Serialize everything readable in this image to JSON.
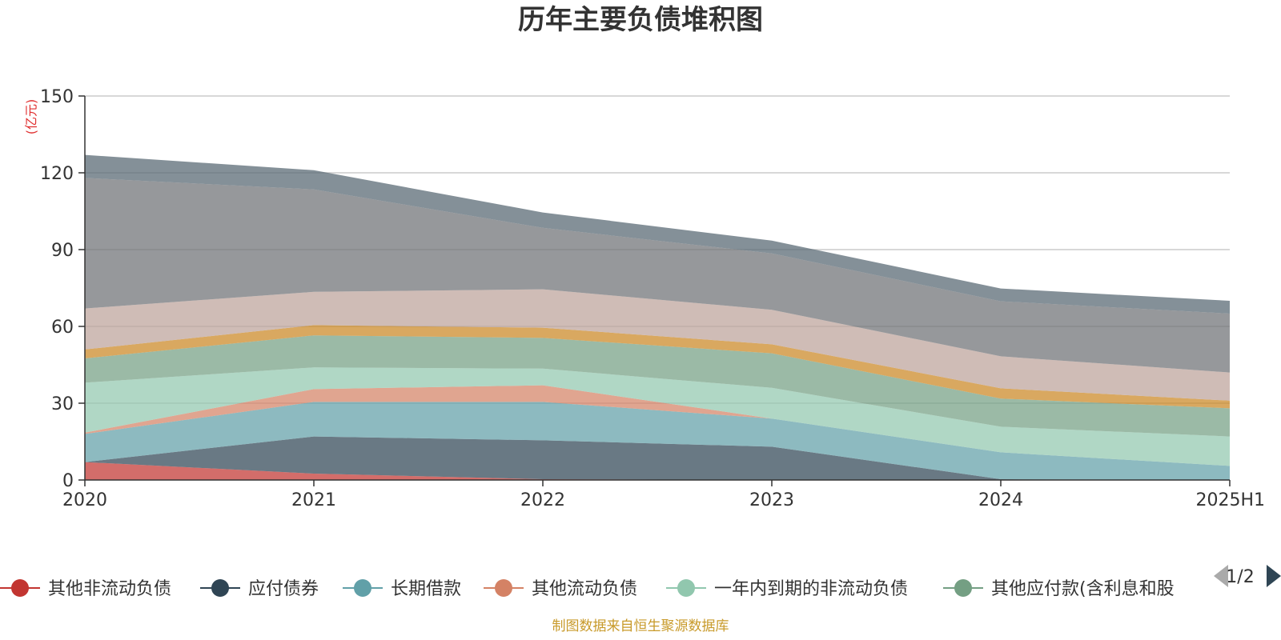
{
  "chart_data": {
    "type": "area",
    "stacked": true,
    "title": "历年主要负债堆积图",
    "unit": "(亿元)",
    "categories": [
      "2020",
      "2021",
      "2022",
      "2023",
      "2024",
      "2025H1"
    ],
    "ylim": [
      0,
      150
    ],
    "yticks": [
      0,
      30,
      60,
      90,
      120,
      150
    ],
    "grid": true,
    "legend_position": "bottom",
    "series": [
      {
        "name": "其他非流动负债",
        "color": "#c23531",
        "values": [
          7,
          2.5,
          0.3,
          0,
          0,
          0
        ]
      },
      {
        "name": "应付债券",
        "color": "#2f4554",
        "values": [
          0,
          14.5,
          15.2,
          13,
          0.3,
          0
        ]
      },
      {
        "name": "长期借款",
        "color": "#61a0a8",
        "values": [
          11,
          13.5,
          15,
          11,
          10.5,
          5.5
        ]
      },
      {
        "name": "其他流动负债",
        "color": "#d48265",
        "values": [
          0.5,
          5,
          6.5,
          0,
          0,
          0
        ]
      },
      {
        "name": "一年内到期的非流动负债",
        "color": "#91c7ae",
        "values": [
          19.5,
          8.5,
          6.5,
          12,
          10,
          11.5
        ]
      },
      {
        "name": "其他应付款(含利息和股利)",
        "color": "#749f83",
        "values": [
          9.5,
          12.5,
          12,
          13.5,
          11,
          11
        ]
      },
      {
        "name": "",
        "color": "#ca8622",
        "values": [
          3.5,
          4,
          4,
          3.5,
          4,
          3
        ]
      },
      {
        "name": "",
        "color": "#bda29a",
        "values": [
          16,
          13,
          15,
          13.5,
          12.5,
          11
        ]
      },
      {
        "name": "",
        "color": "#6e7074",
        "values": [
          51,
          40,
          24,
          22,
          21.5,
          23
        ]
      },
      {
        "name": "",
        "color": "#546570",
        "values": [
          9,
          7.5,
          6,
          5,
          5,
          5
        ]
      }
    ]
  },
  "legend": {
    "page": "1/2",
    "visible_items": [
      "其他非流动负债",
      "应付债券",
      "长期借款",
      "其他流动负债",
      "一年内到期的非流动负债",
      "其他应付款(含利息和股"
    ]
  },
  "source": "制图数据来自恒生聚源数据库"
}
